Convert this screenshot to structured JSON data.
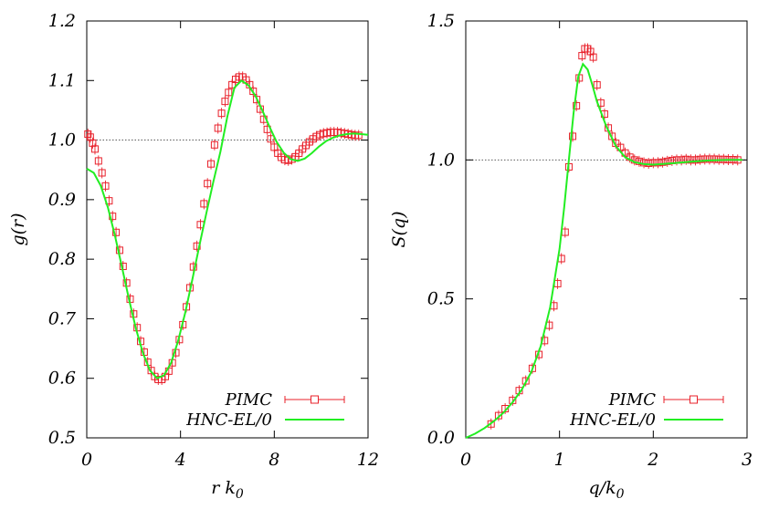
{
  "chart_data": [
    {
      "type": "scatter",
      "xlabel": "r k",
      "xlabel_sub": "0",
      "ylabel": "g(r)",
      "xlim": [
        0,
        12
      ],
      "ylim": [
        0.5,
        1.2
      ],
      "xticks": [
        "0",
        "4",
        "8",
        "12"
      ],
      "yticks": [
        "0.5",
        "0.6",
        "0.7",
        "0.8",
        "0.9",
        "1.0",
        "1.1",
        "1.2"
      ],
      "reference_line_y": 1.0,
      "legend_position": "bottom-right",
      "series": [
        {
          "name": "PIMC",
          "style": "open-square-with-errorbars",
          "color": "#e8202a",
          "x": [
            0.05,
            0.15,
            0.25,
            0.35,
            0.5,
            0.65,
            0.8,
            0.95,
            1.1,
            1.25,
            1.4,
            1.55,
            1.7,
            1.85,
            2.0,
            2.15,
            2.3,
            2.45,
            2.6,
            2.75,
            2.9,
            3.05,
            3.2,
            3.35,
            3.5,
            3.65,
            3.8,
            3.95,
            4.1,
            4.25,
            4.4,
            4.55,
            4.7,
            4.85,
            5.0,
            5.15,
            5.3,
            5.45,
            5.6,
            5.75,
            5.9,
            6.05,
            6.2,
            6.35,
            6.5,
            6.65,
            6.8,
            6.95,
            7.1,
            7.25,
            7.4,
            7.55,
            7.7,
            7.85,
            8.0,
            8.15,
            8.3,
            8.45,
            8.6,
            8.75,
            8.9,
            9.05,
            9.2,
            9.35,
            9.5,
            9.65,
            9.8,
            9.95,
            10.1,
            10.25,
            10.4,
            10.55,
            10.7,
            10.85,
            11.0,
            11.15,
            11.3,
            11.45,
            11.6
          ],
          "y": [
            1.01,
            1.005,
            0.995,
            0.985,
            0.965,
            0.945,
            0.923,
            0.898,
            0.872,
            0.845,
            0.815,
            0.788,
            0.76,
            0.733,
            0.708,
            0.685,
            0.662,
            0.644,
            0.627,
            0.613,
            0.603,
            0.598,
            0.598,
            0.603,
            0.612,
            0.626,
            0.643,
            0.665,
            0.69,
            0.72,
            0.752,
            0.787,
            0.822,
            0.858,
            0.893,
            0.927,
            0.96,
            0.992,
            1.02,
            1.045,
            1.065,
            1.08,
            1.093,
            1.102,
            1.106,
            1.106,
            1.101,
            1.093,
            1.082,
            1.068,
            1.052,
            1.035,
            1.018,
            1.002,
            0.988,
            0.978,
            0.971,
            0.967,
            0.966,
            0.968,
            0.972,
            0.978,
            0.985,
            0.991,
            0.997,
            1.002,
            1.006,
            1.009,
            1.011,
            1.012,
            1.013,
            1.013,
            1.013,
            1.012,
            1.011,
            1.01,
            1.009,
            1.008,
            1.008
          ]
        },
        {
          "name": "HNC-EL/0",
          "style": "line",
          "color": "#22ee22",
          "x": [
            0.0,
            0.3,
            0.6,
            0.9,
            1.2,
            1.5,
            1.8,
            2.1,
            2.4,
            2.7,
            3.0,
            3.3,
            3.6,
            3.9,
            4.2,
            4.5,
            4.8,
            5.1,
            5.4,
            5.7,
            6.0,
            6.3,
            6.6,
            6.9,
            7.2,
            7.5,
            7.8,
            8.1,
            8.4,
            8.7,
            9.0,
            9.3,
            9.6,
            9.9,
            10.2,
            10.5,
            10.8,
            11.1,
            11.4,
            11.7,
            12.0
          ],
          "y": [
            0.952,
            0.945,
            0.923,
            0.887,
            0.84,
            0.787,
            0.733,
            0.683,
            0.642,
            0.613,
            0.6,
            0.605,
            0.626,
            0.663,
            0.71,
            0.765,
            0.822,
            0.877,
            0.93,
            0.98,
            1.04,
            1.088,
            1.1,
            1.092,
            1.074,
            1.049,
            1.022,
            0.997,
            0.979,
            0.968,
            0.965,
            0.969,
            0.978,
            0.989,
            0.998,
            1.004,
            1.008,
            1.01,
            1.011,
            1.01,
            1.009
          ]
        }
      ]
    },
    {
      "type": "scatter",
      "xlabel": "q/k",
      "xlabel_sub": "0",
      "ylabel": "S(q)",
      "xlim": [
        0,
        3
      ],
      "ylim": [
        0.0,
        1.5
      ],
      "xticks": [
        "0",
        "1",
        "2",
        "3"
      ],
      "yticks": [
        "0.0",
        "0.5",
        "1.0",
        "1.5"
      ],
      "reference_line_y": 1.0,
      "legend_position": "bottom-right",
      "series": [
        {
          "name": "PIMC",
          "style": "open-square-with-errorbars",
          "color": "#e8202a",
          "x": [
            0.27,
            0.35,
            0.42,
            0.5,
            0.57,
            0.64,
            0.71,
            0.78,
            0.84,
            0.89,
            0.94,
            0.98,
            1.02,
            1.06,
            1.1,
            1.14,
            1.18,
            1.21,
            1.24,
            1.27,
            1.3,
            1.33,
            1.36,
            1.4,
            1.44,
            1.48,
            1.52,
            1.56,
            1.6,
            1.65,
            1.7,
            1.75,
            1.8,
            1.85,
            1.9,
            1.95,
            2.0,
            2.05,
            2.1,
            2.15,
            2.2,
            2.25,
            2.3,
            2.35,
            2.4,
            2.45,
            2.5,
            2.55,
            2.6,
            2.65,
            2.7,
            2.75,
            2.8,
            2.85,
            2.9
          ],
          "y": [
            0.05,
            0.08,
            0.105,
            0.135,
            0.17,
            0.205,
            0.25,
            0.3,
            0.35,
            0.405,
            0.475,
            0.555,
            0.645,
            0.74,
            0.975,
            1.085,
            1.195,
            1.295,
            1.375,
            1.4,
            1.4,
            1.39,
            1.37,
            1.27,
            1.205,
            1.165,
            1.115,
            1.085,
            1.06,
            1.045,
            1.025,
            1.01,
            1.0,
            0.995,
            0.99,
            0.988,
            0.99,
            0.99,
            0.992,
            0.995,
            0.998,
            1.0,
            1.0,
            1.002,
            1.0,
            1.0,
            1.002,
            1.003,
            1.003,
            1.003,
            1.002,
            1.002,
            1.001,
            1.001,
            1.0
          ]
        },
        {
          "name": "HNC-EL/0",
          "style": "line",
          "color": "#22ee22",
          "x": [
            0.0,
            0.1,
            0.2,
            0.3,
            0.4,
            0.5,
            0.6,
            0.7,
            0.8,
            0.9,
            1.0,
            1.05,
            1.1,
            1.15,
            1.2,
            1.25,
            1.3,
            1.35,
            1.4,
            1.5,
            1.6,
            1.7,
            1.8,
            1.9,
            2.0,
            2.2,
            2.4,
            2.6,
            2.8,
            2.95
          ],
          "y": [
            0.0,
            0.015,
            0.035,
            0.06,
            0.09,
            0.128,
            0.175,
            0.238,
            0.33,
            0.47,
            0.68,
            0.83,
            1.0,
            1.17,
            1.3,
            1.345,
            1.325,
            1.27,
            1.21,
            1.12,
            1.05,
            1.01,
            0.992,
            0.985,
            0.983,
            0.988,
            0.994,
            0.998,
            1.0,
            1.0
          ]
        }
      ]
    }
  ]
}
